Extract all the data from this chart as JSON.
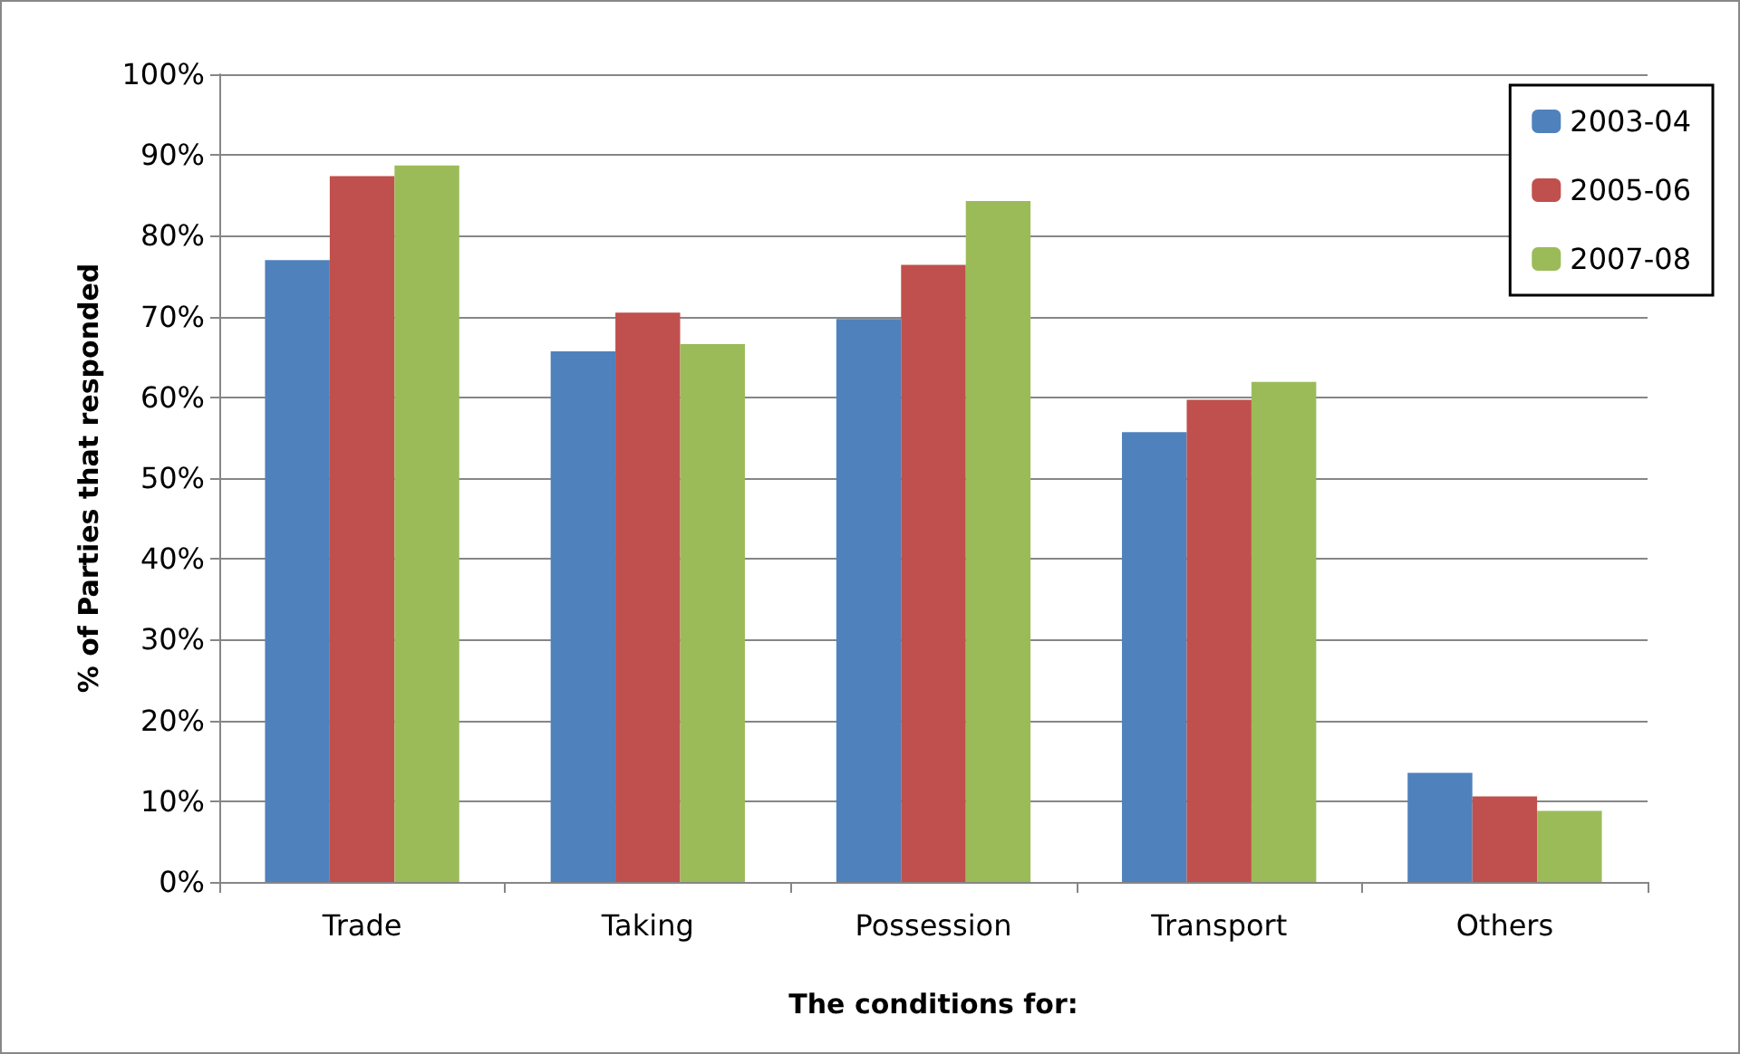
{
  "chart_data": {
    "type": "bar",
    "xlabel": "The conditions for:",
    "ylabel": "% of Parties that responded",
    "categories": [
      "Trade",
      "Taking",
      "Possession",
      "Transport",
      "Others"
    ],
    "series": [
      {
        "name": "2003-04",
        "color": "#4f81bd",
        "values": [
          77,
          65.7,
          69.7,
          55.7,
          13.5
        ]
      },
      {
        "name": "2005-06",
        "color": "#c0504d",
        "values": [
          87.4,
          70.5,
          76.4,
          59.7,
          10.6
        ]
      },
      {
        "name": "2007-08",
        "color": "#9bbb59",
        "values": [
          88.7,
          66.6,
          84.3,
          61.9,
          8.8
        ]
      }
    ],
    "ylim": [
      0,
      100
    ],
    "yticks": [
      {
        "value": 0,
        "label": "0%"
      },
      {
        "value": 10,
        "label": "10%"
      },
      {
        "value": 20,
        "label": "20%"
      },
      {
        "value": 30,
        "label": "30%"
      },
      {
        "value": 40,
        "label": "40%"
      },
      {
        "value": 50,
        "label": "50%"
      },
      {
        "value": 60,
        "label": "60%"
      },
      {
        "value": 70,
        "label": "70%"
      },
      {
        "value": 80,
        "label": "80%"
      },
      {
        "value": 90,
        "label": "90%"
      },
      {
        "value": 100,
        "label": "100%"
      }
    ],
    "grid": "y",
    "legend": "top right"
  }
}
